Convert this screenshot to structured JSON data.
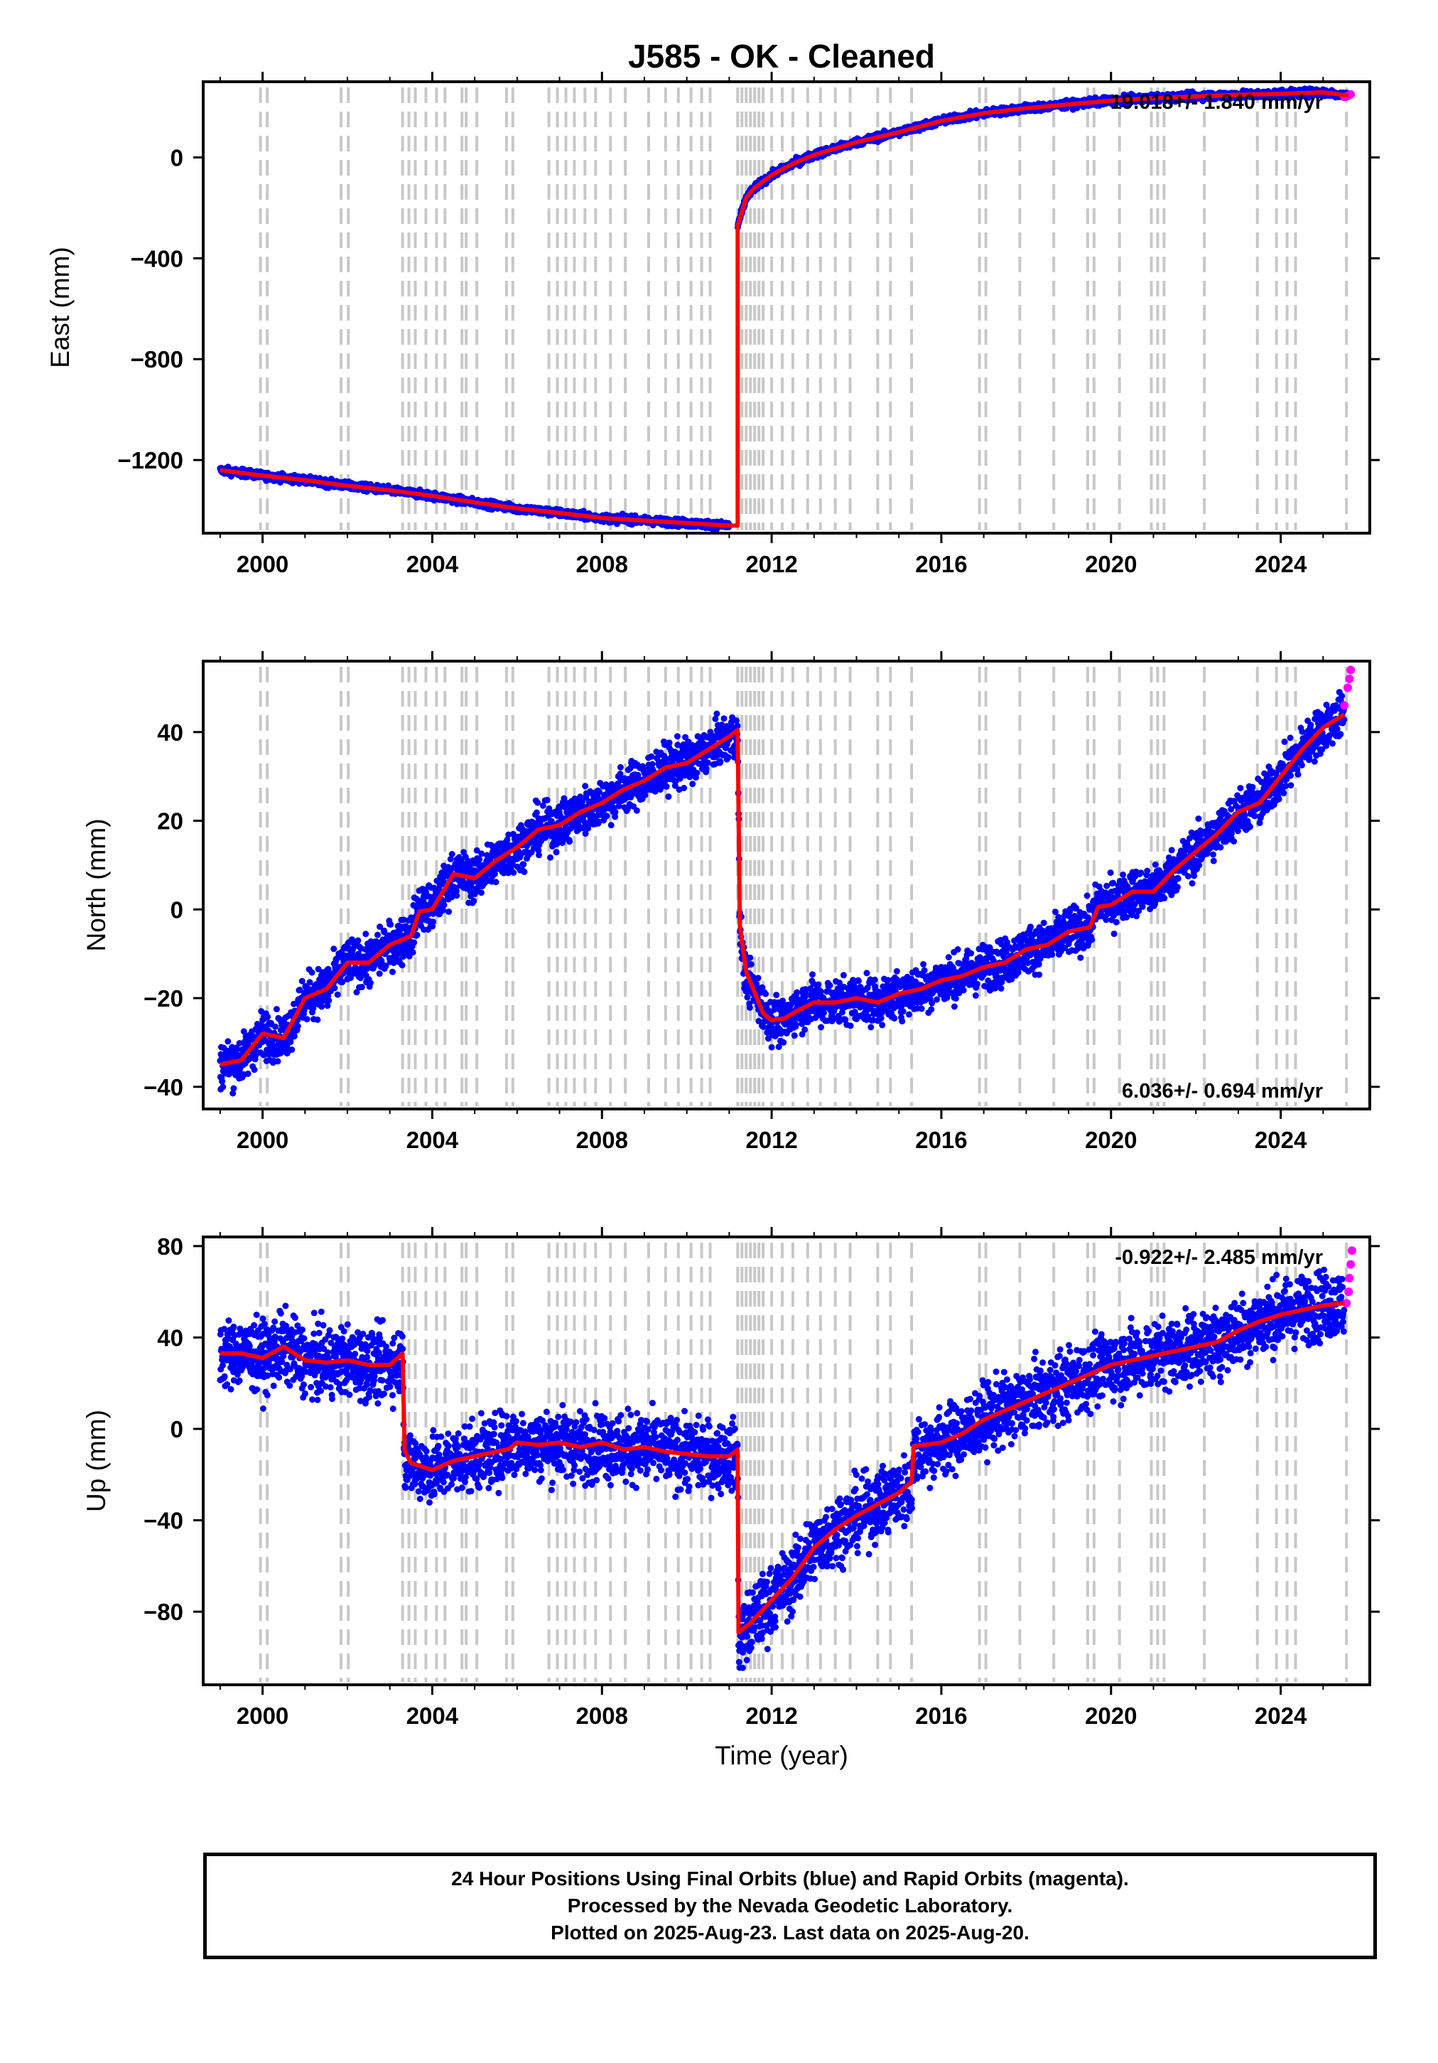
{
  "header": {
    "title": "J585  - OK - Cleaned"
  },
  "x_axis_label": "Time (year)",
  "footer": {
    "line1": "24 Hour Positions Using Final Orbits (blue) and Rapid Orbits (magenta).",
    "line2": "Processed by the Nevada Geodetic Laboratory.",
    "line3": "Plotted on 2025-Aug-23. Last data on 2025-Aug-20."
  },
  "colors": {
    "final_orbits": "#0000ff",
    "rapid_orbits": "#ff00ff",
    "model": "#ff0000",
    "steps": "#c8c8c8"
  },
  "chart_data": [
    {
      "type": "scatter",
      "ylabel": "East (mm)",
      "rate_label": "19.018+/- 1.840 mm/yr",
      "rate_position": "top-right",
      "xlim": [
        1998.6,
        2026.1
      ],
      "ylim": [
        -1490,
        300
      ],
      "x_ticks": [
        2000,
        2004,
        2008,
        2012,
        2016,
        2020,
        2024
      ],
      "y_ticks": [
        0,
        -400,
        -800,
        -1200
      ],
      "series": [
        {
          "points": [
            [
              1999.0,
              -1240
            ],
            [
              2000.0,
              -1262
            ],
            [
              2001.0,
              -1280
            ],
            [
              2002.0,
              -1302
            ],
            [
              2003.0,
              -1320
            ],
            [
              2004.0,
              -1342
            ],
            [
              2005.0,
              -1368
            ],
            [
              2006.0,
              -1392
            ],
            [
              2007.0,
              -1410
            ],
            [
              2008.0,
              -1430
            ],
            [
              2009.0,
              -1440
            ],
            [
              2010.0,
              -1450
            ],
            [
              2011.0,
              -1460
            ],
            [
              2011.2,
              -1460
            ],
            [
              2011.2,
              -270
            ],
            [
              2011.4,
              -160
            ],
            [
              2011.6,
              -120
            ],
            [
              2012.0,
              -70
            ],
            [
              2012.5,
              -25
            ],
            [
              2013.0,
              10
            ],
            [
              2014.0,
              60
            ],
            [
              2015.0,
              100
            ],
            [
              2016.0,
              145
            ],
            [
              2017.0,
              175
            ],
            [
              2018.0,
              195
            ],
            [
              2019.0,
              210
            ],
            [
              2020.0,
              225
            ],
            [
              2021.0,
              235
            ],
            [
              2022.0,
              242
            ],
            [
              2023.0,
              248
            ],
            [
              2024.0,
              252
            ],
            [
              2025.0,
              258
            ],
            [
              2025.6,
              245
            ]
          ]
        },
        {
          "points": [
            [
              2025.5,
              240
            ],
            [
              2025.6,
              245
            ],
            [
              2025.65,
              250
            ]
          ]
        }
      ]
    },
    {
      "type": "scatter",
      "ylabel": "North (mm)",
      "rate_label": "6.036+/- 0.694 mm/yr",
      "rate_position": "bottom-right",
      "xlim": [
        1998.6,
        2026.1
      ],
      "ylim": [
        -45,
        56
      ],
      "x_ticks": [
        2000,
        2004,
        2008,
        2012,
        2016,
        2020,
        2024
      ],
      "y_ticks": [
        40,
        20,
        0,
        -20,
        -40
      ],
      "series": [
        {
          "points": [
            [
              1999.0,
              -35
            ],
            [
              1999.5,
              -34
            ],
            [
              2000.0,
              -28
            ],
            [
              2000.5,
              -29
            ],
            [
              2001.0,
              -20
            ],
            [
              2001.5,
              -18
            ],
            [
              2002.0,
              -12
            ],
            [
              2002.5,
              -12
            ],
            [
              2003.0,
              -8
            ],
            [
              2003.5,
              -6
            ],
            [
              2003.7,
              1
            ],
            [
              2004.0,
              0
            ],
            [
              2004.5,
              8
            ],
            [
              2005.0,
              7
            ],
            [
              2005.5,
              11
            ],
            [
              2006.0,
              14
            ],
            [
              2006.5,
              18
            ],
            [
              2007.0,
              19
            ],
            [
              2007.5,
              22
            ],
            [
              2008.0,
              24
            ],
            [
              2008.5,
              27
            ],
            [
              2009.0,
              29
            ],
            [
              2009.5,
              32
            ],
            [
              2010.0,
              33
            ],
            [
              2010.5,
              36
            ],
            [
              2011.0,
              39
            ],
            [
              2011.2,
              39
            ],
            [
              2011.25,
              -5
            ],
            [
              2011.4,
              -15
            ],
            [
              2011.8,
              -22
            ],
            [
              2012.0,
              -25
            ],
            [
              2012.3,
              -26
            ],
            [
              2012.6,
              -22
            ],
            [
              2013.0,
              -21
            ],
            [
              2013.5,
              -21
            ],
            [
              2014.0,
              -20
            ],
            [
              2014.5,
              -21
            ],
            [
              2015.0,
              -19
            ],
            [
              2015.5,
              -18
            ],
            [
              2016.0,
              -16
            ],
            [
              2016.5,
              -15
            ],
            [
              2017.0,
              -13
            ],
            [
              2017.5,
              -12
            ],
            [
              2018.0,
              -9
            ],
            [
              2018.5,
              -8
            ],
            [
              2019.0,
              -5
            ],
            [
              2019.5,
              -4
            ],
            [
              2019.7,
              2
            ],
            [
              2020.0,
              1
            ],
            [
              2020.5,
              4
            ],
            [
              2021.0,
              4
            ],
            [
              2021.5,
              9
            ],
            [
              2022.0,
              13
            ],
            [
              2022.5,
              17
            ],
            [
              2023.0,
              22
            ],
            [
              2023.5,
              24
            ],
            [
              2024.0,
              30
            ],
            [
              2024.5,
              36
            ],
            [
              2025.0,
              41
            ],
            [
              2025.5,
              44
            ]
          ]
        },
        {
          "points": [
            [
              2025.5,
              46
            ],
            [
              2025.58,
              50
            ],
            [
              2025.62,
              52
            ],
            [
              2025.65,
              54
            ]
          ]
        }
      ]
    },
    {
      "type": "scatter",
      "ylabel": "Up (mm)",
      "rate_label": "-0.922+/- 2.485 mm/yr",
      "rate_position": "top-right",
      "xlim": [
        1998.6,
        2026.1
      ],
      "ylim": [
        -112,
        84
      ],
      "x_ticks": [
        2000,
        2004,
        2008,
        2012,
        2016,
        2020,
        2024
      ],
      "y_ticks": [
        80,
        40,
        0,
        -40,
        -80
      ],
      "series": [
        {
          "points": [
            [
              1999.0,
              33
            ],
            [
              1999.5,
              33
            ],
            [
              2000.0,
              31
            ],
            [
              2000.5,
              36
            ],
            [
              2001.0,
              30
            ],
            [
              2001.5,
              29
            ],
            [
              2002.0,
              30
            ],
            [
              2002.5,
              28
            ],
            [
              2003.0,
              28
            ],
            [
              2003.3,
              30
            ],
            [
              2003.35,
              -12
            ],
            [
              2003.5,
              -15
            ],
            [
              2004.0,
              -18
            ],
            [
              2004.5,
              -14
            ],
            [
              2005.0,
              -12
            ],
            [
              2005.5,
              -10
            ],
            [
              2005.8,
              -6
            ],
            [
              2006.0,
              -6
            ],
            [
              2006.5,
              -7
            ],
            [
              2007.0,
              -6
            ],
            [
              2007.5,
              -8
            ],
            [
              2008.0,
              -6
            ],
            [
              2008.5,
              -9
            ],
            [
              2009.0,
              -8
            ],
            [
              2009.5,
              -10
            ],
            [
              2010.0,
              -11
            ],
            [
              2010.5,
              -12
            ],
            [
              2011.0,
              -12
            ],
            [
              2011.2,
              -12
            ],
            [
              2011.22,
              -92
            ],
            [
              2011.5,
              -85
            ],
            [
              2012.0,
              -75
            ],
            [
              2012.5,
              -65
            ],
            [
              2013.0,
              -52
            ],
            [
              2013.5,
              -44
            ],
            [
              2014.0,
              -38
            ],
            [
              2014.5,
              -33
            ],
            [
              2015.0,
              -28
            ],
            [
              2015.3,
              -26
            ],
            [
              2015.35,
              -10
            ],
            [
              2016.0,
              -6
            ],
            [
              2016.5,
              -2
            ],
            [
              2017.0,
              4
            ],
            [
              2017.5,
              8
            ],
            [
              2018.0,
              12
            ],
            [
              2018.5,
              16
            ],
            [
              2019.0,
              20
            ],
            [
              2019.5,
              24
            ],
            [
              2020.0,
              28
            ],
            [
              2020.5,
              30
            ],
            [
              2021.0,
              32
            ],
            [
              2021.5,
              34
            ],
            [
              2022.0,
              36
            ],
            [
              2022.5,
              38
            ],
            [
              2023.0,
              43
            ],
            [
              2023.5,
              47
            ],
            [
              2024.0,
              50
            ],
            [
              2024.5,
              52
            ],
            [
              2025.0,
              54
            ],
            [
              2025.5,
              55
            ]
          ]
        },
        {
          "points": [
            [
              2025.55,
              55
            ],
            [
              2025.6,
              60
            ],
            [
              2025.62,
              66
            ],
            [
              2025.65,
              72
            ],
            [
              2025.68,
              78
            ]
          ]
        }
      ]
    }
  ],
  "step_lines": [
    1999.95,
    2000.11,
    2001.85,
    2002.02,
    2003.3,
    2003.45,
    2003.6,
    2003.85,
    2004.1,
    2004.3,
    2004.7,
    2004.8,
    2005.05,
    2005.75,
    2005.9,
    2006.75,
    2006.95,
    2007.15,
    2007.35,
    2007.6,
    2007.85,
    2008.2,
    2008.55,
    2009.1,
    2009.5,
    2009.8,
    2010.1,
    2010.35,
    2010.55,
    2011.2,
    2011.3,
    2011.4,
    2011.5,
    2011.6,
    2011.7,
    2011.8,
    2012.0,
    2012.25,
    2012.5,
    2012.85,
    2013.15,
    2013.5,
    2013.85,
    2014.5,
    2014.8,
    2015.3,
    2016.9,
    2017.05,
    2017.85,
    2018.65,
    2019.45,
    2019.6,
    2020.2,
    2020.95,
    2021.1,
    2021.25,
    2022.2,
    2023.45,
    2023.9,
    2024.15,
    2024.35,
    2025.55
  ]
}
